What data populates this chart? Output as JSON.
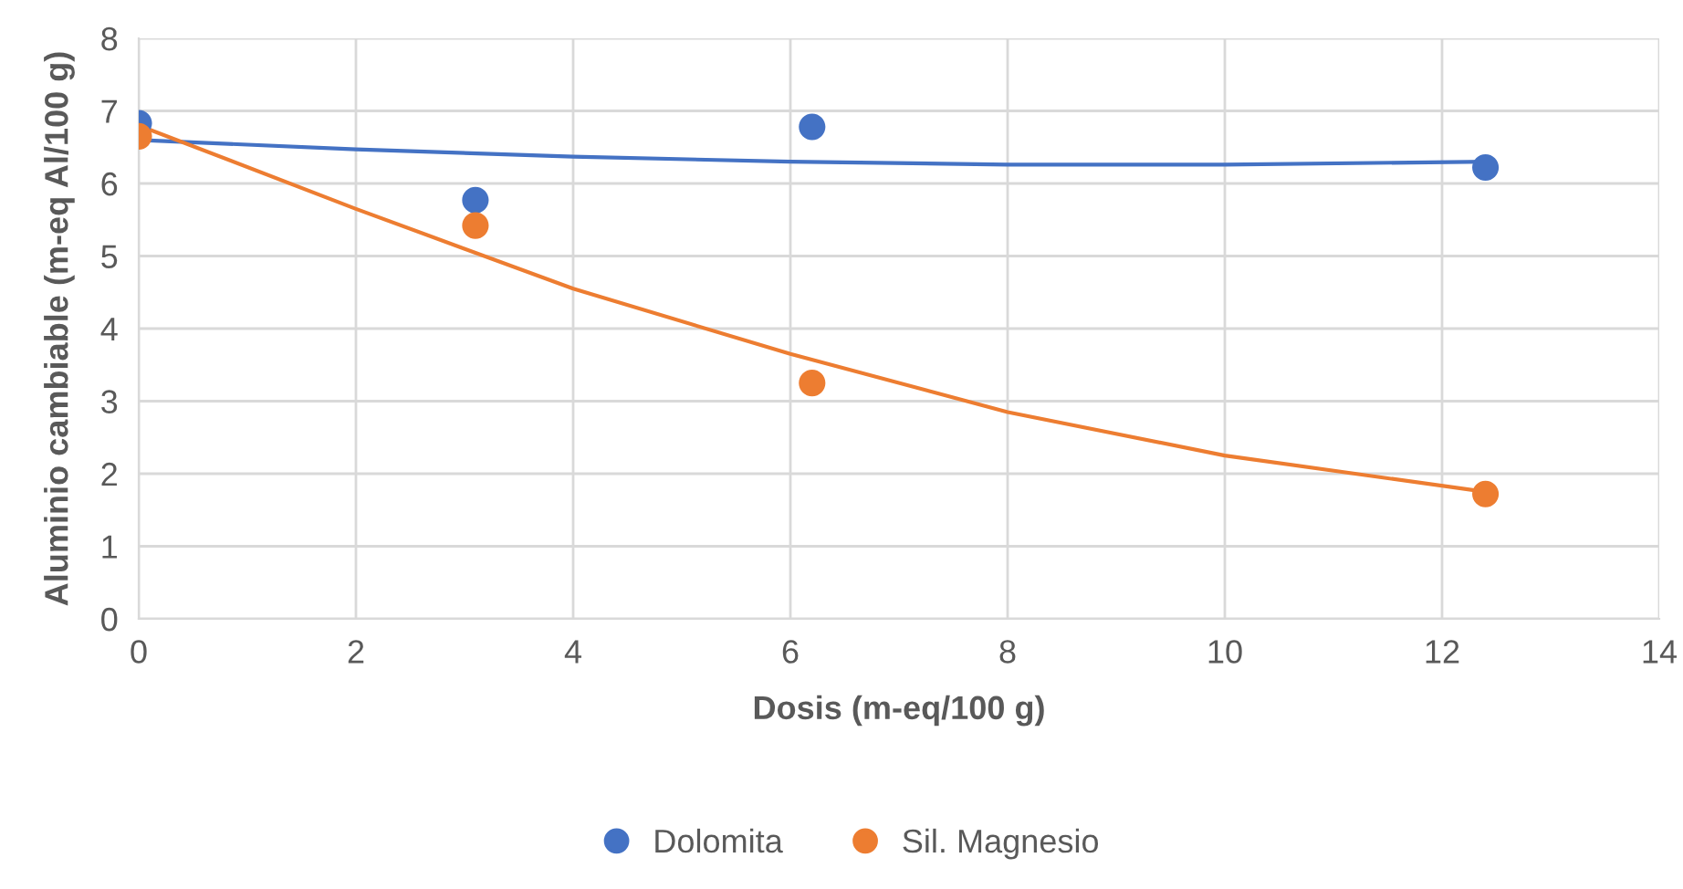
{
  "chart_data": {
    "type": "scatter",
    "xlabel": "Dosis (m-eq/100 g)",
    "ylabel": "Aluminio cambiable (m-eq Al/100 g)",
    "series": [
      {
        "name": "Dolomita",
        "color": "#4472c4",
        "x": [
          0,
          3.1,
          6.2,
          12.4
        ],
        "values": [
          6.83,
          5.77,
          6.78,
          6.22
        ],
        "marker": "circle"
      },
      {
        "name": "Sil. Magnesio",
        "color": "#ed7d31",
        "x": [
          0,
          3.1,
          6.2,
          12.4
        ],
        "values": [
          6.65,
          5.42,
          3.25,
          1.72
        ],
        "marker": "circle"
      },
      {
        "type": "line",
        "color": "#4472c4",
        "x": [
          0,
          2,
          4,
          6,
          8,
          10,
          12.4
        ],
        "values": [
          6.6,
          6.47,
          6.37,
          6.3,
          6.26,
          6.26,
          6.3
        ]
      },
      {
        "type": "line",
        "color": "#ed7d31",
        "x": [
          0,
          2,
          4,
          6,
          8,
          10,
          12.4
        ],
        "values": [
          6.8,
          5.65,
          4.55,
          3.65,
          2.85,
          2.25,
          1.75
        ]
      }
    ],
    "xlim": [
      0,
      14
    ],
    "xticks": [
      0,
      2,
      4,
      6,
      8,
      10,
      12,
      14
    ],
    "ylim": [
      0,
      8
    ],
    "yticks": [
      0,
      1,
      2,
      3,
      4,
      5,
      6,
      7,
      8
    ],
    "grid": true,
    "legend": "bottom"
  }
}
